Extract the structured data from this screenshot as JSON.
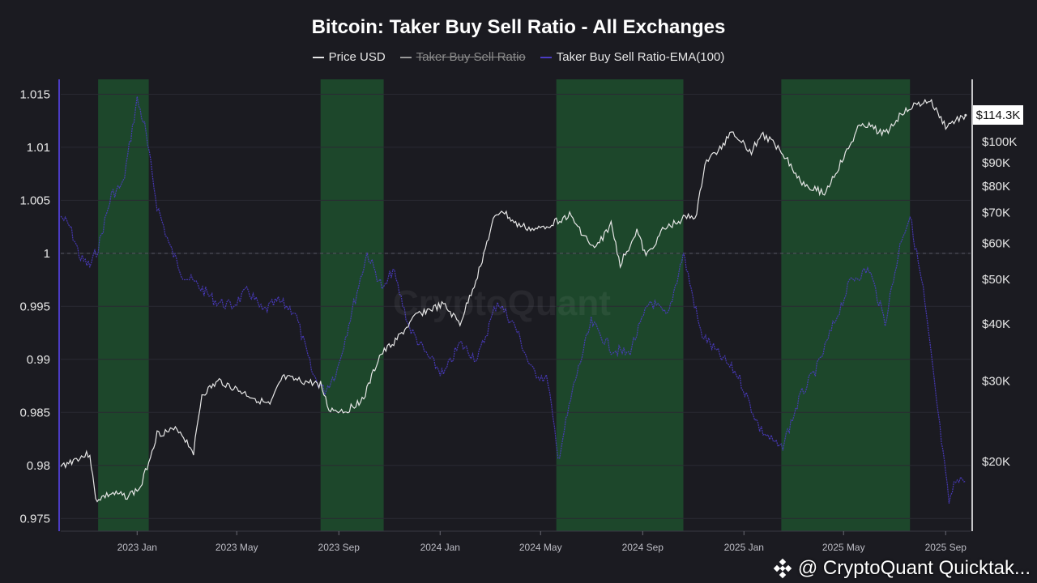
{
  "chart_data": {
    "type": "line",
    "title": "Bitcoin: Taker Buy Sell Ratio - All Exchanges",
    "legend": [
      {
        "name": "Price USD",
        "color": "#e6e6e6",
        "visible": true
      },
      {
        "name": "Taker Buy Sell Ratio",
        "color": "#9a9a9a",
        "visible": false
      },
      {
        "name": "Taker Buy Sell Ratio-EMA(100)",
        "color": "#4b3cc4",
        "visible": true
      }
    ],
    "x_ticks": [
      "2023 Jan",
      "2023 May",
      "2023 Sep",
      "2024 Jan",
      "2024 May",
      "2024 Sep",
      "2025 Jan",
      "2025 May",
      "2025 Sep"
    ],
    "x_range": [
      "2022-10-01",
      "2025-10-01"
    ],
    "left_axis": {
      "ticks": [
        "1.015",
        "1.01",
        "1.005",
        "1",
        "0.995",
        "0.99",
        "0.985",
        "0.98",
        "0.975"
      ],
      "ylim": [
        0.9738,
        1.0164
      ],
      "reference_line": 1.0
    },
    "right_axis": {
      "ticks": [
        "$100K",
        "$90K",
        "$80K",
        "$70K",
        "$60K",
        "$50K",
        "$40K",
        "$30K",
        "$20K"
      ],
      "scale": "log",
      "current_label": "$114.3K"
    },
    "highlight_periods": [
      {
        "start": "2022-11-15",
        "end": "2023-01-15"
      },
      {
        "start": "2023-08-10",
        "end": "2023-10-25"
      },
      {
        "start": "2024-05-20",
        "end": "2024-10-20"
      },
      {
        "start": "2025-02-15",
        "end": "2025-07-20"
      }
    ],
    "series": [
      {
        "name": "Price USD",
        "axis": "right",
        "x": [
          "2022-10-01",
          "2022-10-20",
          "2022-11-05",
          "2022-11-12",
          "2022-12-01",
          "2022-12-20",
          "2023-01-05",
          "2023-01-25",
          "2023-02-20",
          "2023-03-10",
          "2023-03-20",
          "2023-04-10",
          "2023-05-05",
          "2023-06-10",
          "2023-06-25",
          "2023-07-15",
          "2023-08-10",
          "2023-08-20",
          "2023-09-10",
          "2023-10-01",
          "2023-10-20",
          "2023-11-10",
          "2023-12-05",
          "2024-01-05",
          "2024-01-25",
          "2024-02-15",
          "2024-03-05",
          "2024-03-15",
          "2024-04-01",
          "2024-04-25",
          "2024-05-20",
          "2024-06-05",
          "2024-07-05",
          "2024-07-25",
          "2024-08-05",
          "2024-08-25",
          "2024-09-05",
          "2024-09-25",
          "2024-10-20",
          "2024-11-05",
          "2024-11-15",
          "2024-12-05",
          "2024-12-17",
          "2025-01-10",
          "2025-01-22",
          "2025-02-15",
          "2025-03-10",
          "2025-04-08",
          "2025-05-05",
          "2025-05-22",
          "2025-06-20",
          "2025-07-15",
          "2025-08-13",
          "2025-09-01",
          "2025-09-25"
        ],
        "values": [
          19500,
          20300,
          20800,
          16500,
          17000,
          16800,
          17500,
          23000,
          23500,
          21000,
          28000,
          30000,
          28500,
          26500,
          30500,
          30000,
          29500,
          26000,
          25800,
          27500,
          34000,
          37000,
          42000,
          44000,
          40000,
          51000,
          67000,
          71000,
          66000,
          64000,
          67000,
          69000,
          58000,
          66000,
          54000,
          64000,
          56000,
          64000,
          68000,
          69000,
          90000,
          97000,
          106000,
          95000,
          104000,
          96000,
          82000,
          77000,
          95000,
          110000,
          104000,
          118000,
          123000,
          108000,
          114300
        ]
      },
      {
        "name": "Taker Buy Sell Ratio-EMA(100)",
        "axis": "left",
        "x": [
          "2022-10-01",
          "2022-10-12",
          "2022-10-25",
          "2022-11-05",
          "2022-11-15",
          "2022-12-01",
          "2022-12-15",
          "2023-01-01",
          "2023-01-10",
          "2023-01-25",
          "2023-02-10",
          "2023-02-25",
          "2023-03-15",
          "2023-04-05",
          "2023-04-25",
          "2023-05-15",
          "2023-06-01",
          "2023-06-20",
          "2023-07-10",
          "2023-08-01",
          "2023-08-15",
          "2023-08-30",
          "2023-09-15",
          "2023-10-05",
          "2023-10-25",
          "2023-11-05",
          "2023-11-25",
          "2023-12-15",
          "2024-01-05",
          "2024-01-25",
          "2024-02-15",
          "2024-03-10",
          "2024-04-01",
          "2024-04-20",
          "2024-05-10",
          "2024-05-22",
          "2024-06-10",
          "2024-07-01",
          "2024-07-25",
          "2024-08-15",
          "2024-09-10",
          "2024-10-01",
          "2024-10-20",
          "2024-11-10",
          "2024-12-01",
          "2024-12-25",
          "2025-01-20",
          "2025-02-15",
          "2025-03-10",
          "2025-04-01",
          "2025-04-20",
          "2025-05-10",
          "2025-06-01",
          "2025-06-20",
          "2025-07-10",
          "2025-07-20",
          "2025-08-05",
          "2025-08-25",
          "2025-09-05",
          "2025-09-15",
          "2025-09-25"
        ],
        "values": [
          1.0035,
          1.0025,
          0.9995,
          0.9988,
          1.0005,
          1.0055,
          1.0065,
          1.0145,
          1.012,
          1.0045,
          1.0005,
          0.998,
          0.997,
          0.9955,
          0.995,
          0.9965,
          0.9945,
          0.9955,
          0.9945,
          0.9885,
          0.987,
          0.989,
          0.994,
          1.0,
          0.9965,
          0.9985,
          0.993,
          0.9905,
          0.9885,
          0.9915,
          0.99,
          0.9955,
          0.993,
          0.989,
          0.988,
          0.9805,
          0.9875,
          0.9935,
          0.991,
          0.9905,
          0.9955,
          0.994,
          1.0,
          0.9925,
          0.9905,
          0.9885,
          0.9835,
          0.9815,
          0.9865,
          0.9895,
          0.9935,
          0.9975,
          0.9985,
          0.9935,
          1.0015,
          1.0035,
          0.9965,
          0.9835,
          0.9765,
          0.979,
          0.9785
        ]
      }
    ]
  },
  "watermark_text": "CryptoQuant",
  "footer": {
    "icon": "binance-diamond-icon",
    "text": "@ CryptoQuant Quicktak..."
  },
  "colors": {
    "background": "#1b1b21",
    "highlight": "#1e4a2c",
    "ema": "#4b3cc4",
    "price": "#e6e6e6"
  }
}
